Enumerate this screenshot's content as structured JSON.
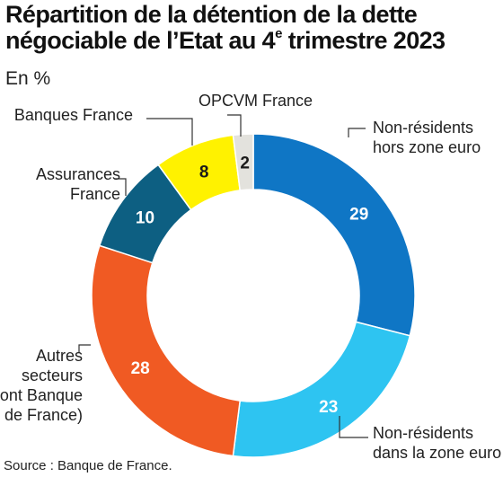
{
  "title_line1": "Répartition de la détention de la dette",
  "title_line2_pre": "négociable de l’Etat au 4",
  "title_sup": "e",
  "title_line2_post": " trimestre 2023",
  "unit": "En %",
  "source": "Source : Banque de France.",
  "chart_data": {
    "type": "pie",
    "style": "donut",
    "start": "top, clockwise",
    "slices": [
      {
        "label_lines": [
          "Non-résidents",
          "hors zone euro"
        ],
        "value": 29,
        "value_label": "29",
        "color": "#0f76c5",
        "value_color": "#ffffff"
      },
      {
        "label_lines": [
          "Non-résidents",
          "dans la zone euro"
        ],
        "value": 23,
        "value_label": "23",
        "color": "#2ec4f1",
        "value_color": "#ffffff"
      },
      {
        "label_lines": [
          "Autres",
          "secteurs",
          "(dont Banque",
          "de France)"
        ],
        "value": 28,
        "value_label": "28",
        "color": "#f05a23",
        "value_color": "#ffffff"
      },
      {
        "label_lines": [
          "Assurances",
          "France"
        ],
        "value": 10,
        "value_label": "10",
        "color": "#0d5f82",
        "value_color": "#ffffff"
      },
      {
        "label_lines": [
          "Banques France"
        ],
        "value": 8,
        "value_label": "8",
        "color": "#fff200",
        "value_color": "#1a1a1a"
      },
      {
        "label_lines": [
          "OPCVM France"
        ],
        "value": 2,
        "value_label": "2",
        "color": "#e3e2dd",
        "value_color": "#1a1a1a"
      }
    ]
  }
}
